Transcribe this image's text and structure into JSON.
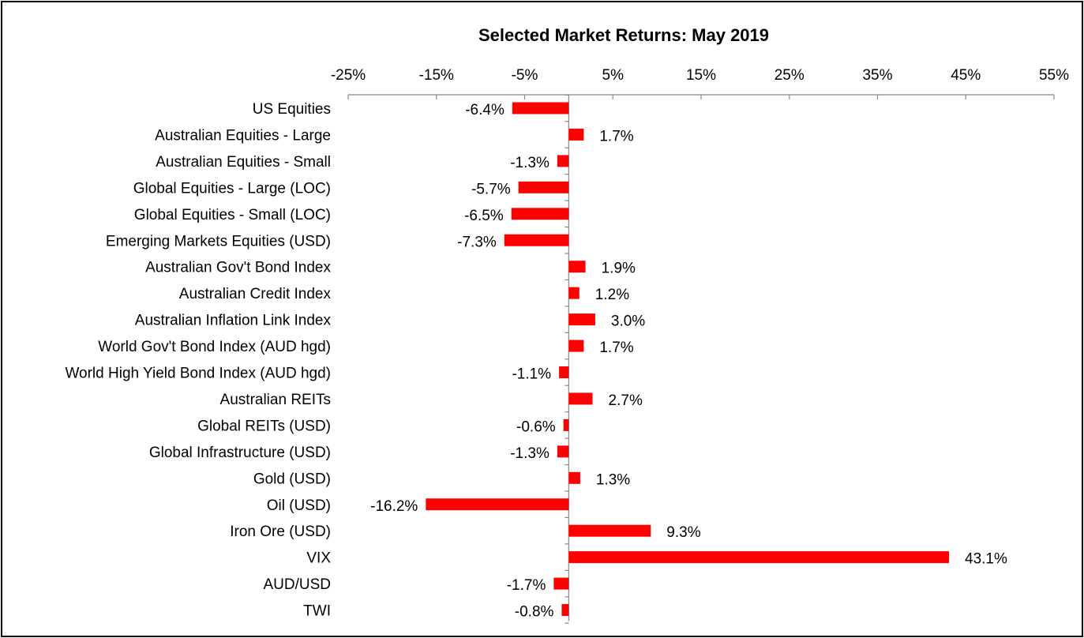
{
  "chart_data": {
    "type": "bar",
    "orientation": "horizontal",
    "title": "Selected Market Returns: May 2019",
    "xlim": [
      -25,
      55
    ],
    "x_ticks": [
      -25,
      -15,
      -5,
      5,
      15,
      25,
      35,
      45,
      55
    ],
    "x_tick_labels": [
      "-25%",
      "-15%",
      "-5%",
      "5%",
      "15%",
      "25%",
      "35%",
      "45%",
      "55%"
    ],
    "x_axis_position": "top",
    "grid": false,
    "legend": "none",
    "bar_color": "#FF0000",
    "categories": [
      "US Equities",
      "Australian Equities - Large",
      "Australian Equities - Small",
      "Global Equities - Large (LOC)",
      "Global Equities - Small (LOC)",
      "Emerging Markets Equities (USD)",
      "Australian Gov't Bond Index",
      "Australian Credit Index",
      "Australian Inflation Link Index",
      "World Gov't Bond Index (AUD hgd)",
      "World High Yield Bond Index (AUD hgd)",
      "Australian REITs",
      "Global REITs (USD)",
      "Global Infrastructure (USD)",
      "Gold (USD)",
      "Oil (USD)",
      "Iron Ore (USD)",
      "VIX",
      "AUD/USD",
      "TWI"
    ],
    "values": [
      -6.4,
      1.7,
      -1.3,
      -5.7,
      -6.5,
      -7.3,
      1.9,
      1.2,
      3.0,
      1.7,
      -1.1,
      2.7,
      -0.6,
      -1.3,
      1.3,
      -16.2,
      9.3,
      43.1,
      -1.7,
      -0.8
    ],
    "data_labels": [
      "-6.4%",
      "1.7%",
      "-1.3%",
      "-5.7%",
      "-6.5%",
      "-7.3%",
      "1.9%",
      "1.2%",
      "3.0%",
      "1.7%",
      "-1.1%",
      "2.7%",
      "-0.6%",
      "-1.3%",
      "1.3%",
      "-16.2%",
      "9.3%",
      "43.1%",
      "-1.7%",
      "-0.8%"
    ]
  }
}
